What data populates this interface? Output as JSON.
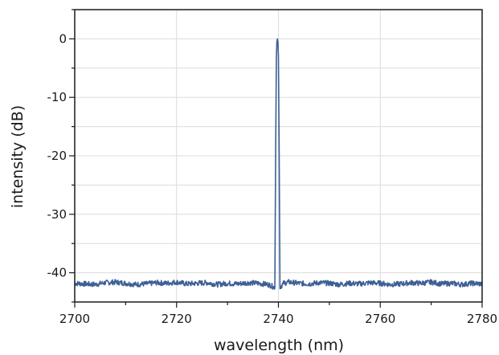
{
  "chart_data": {
    "type": "line",
    "xlabel": "wavelength (nm)",
    "ylabel": "intensity (dB)",
    "xlim": [
      2700,
      2780
    ],
    "ylim": [
      -45,
      5
    ],
    "xticks": [
      2700,
      2720,
      2740,
      2760,
      2780
    ],
    "yticks": [
      0,
      -10,
      -20,
      -30,
      -40
    ],
    "grid": true,
    "colors": {
      "line": "#3d5f95",
      "grid": "#dcdcdc",
      "axis": "#1a1a1a"
    },
    "series": [
      {
        "points": [
          [
            2700,
            -41.8
          ],
          [
            2702,
            -41.9
          ],
          [
            2704,
            -42.0
          ],
          [
            2706,
            -41.7
          ],
          [
            2708,
            -41.6
          ],
          [
            2710,
            -41.8
          ],
          [
            2712,
            -42.0
          ],
          [
            2714,
            -41.9
          ],
          [
            2716,
            -41.7
          ],
          [
            2718,
            -41.8
          ],
          [
            2720,
            -41.6
          ],
          [
            2722,
            -41.9
          ],
          [
            2724,
            -41.8
          ],
          [
            2726,
            -41.7
          ],
          [
            2728,
            -42.0
          ],
          [
            2730,
            -41.8
          ],
          [
            2732,
            -41.9
          ],
          [
            2734,
            -41.7
          ],
          [
            2736,
            -41.8
          ],
          [
            2738,
            -42.0
          ],
          [
            2739.3,
            -42.5
          ],
          [
            2739.45,
            -20.0
          ],
          [
            2739.6,
            -3.0
          ],
          [
            2739.7,
            -0.5
          ],
          [
            2739.8,
            0.0
          ],
          [
            2739.9,
            -0.6
          ],
          [
            2740.0,
            -3.0
          ],
          [
            2740.15,
            -20.0
          ],
          [
            2740.3,
            -42.5
          ],
          [
            2741,
            -41.8
          ],
          [
            2742,
            -41.6
          ],
          [
            2744,
            -41.8
          ],
          [
            2746,
            -41.9
          ],
          [
            2748,
            -41.7
          ],
          [
            2750,
            -41.8
          ],
          [
            2752,
            -42.0
          ],
          [
            2754,
            -41.8
          ],
          [
            2756,
            -41.9
          ],
          [
            2758,
            -41.7
          ],
          [
            2760,
            -41.8
          ],
          [
            2762,
            -42.0
          ],
          [
            2764,
            -41.9
          ],
          [
            2766,
            -41.7
          ],
          [
            2768,
            -41.8
          ],
          [
            2770,
            -41.6
          ],
          [
            2772,
            -41.9
          ],
          [
            2774,
            -41.8
          ],
          [
            2776,
            -42.0
          ],
          [
            2778,
            -41.8
          ],
          [
            2780,
            -41.9
          ]
        ]
      }
    ]
  }
}
